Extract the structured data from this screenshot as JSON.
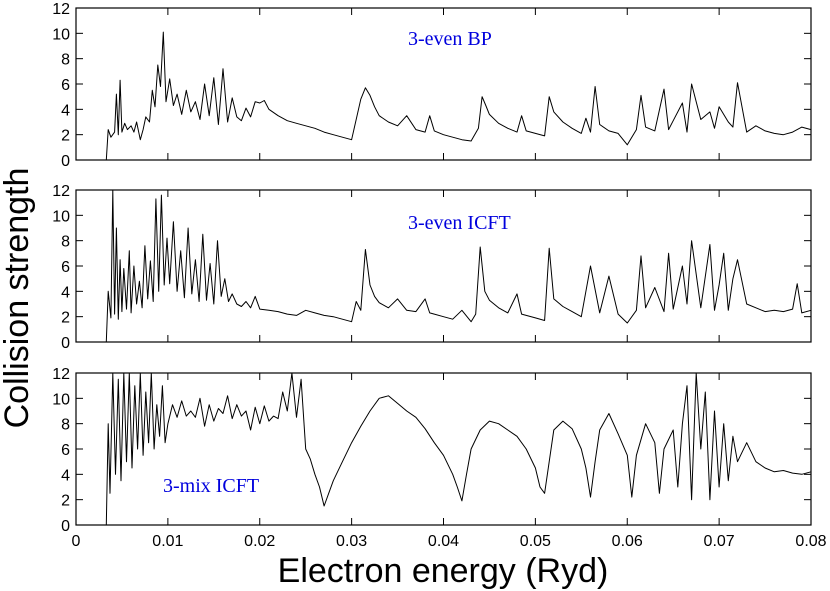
{
  "chart_data": [
    {
      "type": "line",
      "panel_label": "3-even BP",
      "ylim": [
        0,
        12
      ],
      "yticks": [
        0,
        2,
        4,
        6,
        8,
        10,
        12
      ],
      "xlim": [
        0,
        0.08
      ],
      "xticks": [
        0,
        0.01,
        0.02,
        0.03,
        0.04,
        0.05,
        0.06,
        0.07,
        0.08
      ],
      "series": [
        {
          "name": "3-even BP",
          "x": [
            0.0033,
            0.0035,
            0.0038,
            0.0042,
            0.0044,
            0.0046,
            0.0048,
            0.005,
            0.0053,
            0.0056,
            0.006,
            0.0063,
            0.0066,
            0.007,
            0.0073,
            0.0076,
            0.008,
            0.0083,
            0.0086,
            0.0089,
            0.0092,
            0.0095,
            0.0098,
            0.0102,
            0.0106,
            0.011,
            0.0115,
            0.012,
            0.0125,
            0.013,
            0.0135,
            0.014,
            0.0145,
            0.015,
            0.0155,
            0.016,
            0.0165,
            0.017,
            0.0175,
            0.018,
            0.0185,
            0.019,
            0.0195,
            0.02,
            0.0205,
            0.021,
            0.022,
            0.023,
            0.024,
            0.025,
            0.026,
            0.027,
            0.028,
            0.029,
            0.03,
            0.031,
            0.0315,
            0.032,
            0.0325,
            0.033,
            0.034,
            0.035,
            0.036,
            0.037,
            0.038,
            0.0385,
            0.039,
            0.04,
            0.041,
            0.042,
            0.043,
            0.0438,
            0.0442,
            0.0446,
            0.045,
            0.046,
            0.047,
            0.048,
            0.0485,
            0.049,
            0.05,
            0.051,
            0.0515,
            0.052,
            0.053,
            0.054,
            0.055,
            0.0555,
            0.056,
            0.0565,
            0.057,
            0.058,
            0.059,
            0.06,
            0.061,
            0.0615,
            0.062,
            0.063,
            0.064,
            0.0645,
            0.065,
            0.066,
            0.0665,
            0.067,
            0.068,
            0.069,
            0.0695,
            0.07,
            0.071,
            0.0715,
            0.072,
            0.073,
            0.074,
            0.075,
            0.076,
            0.077,
            0.078,
            0.079,
            0.08
          ],
          "y": [
            0,
            2.4,
            1.8,
            2.2,
            5.2,
            2.0,
            6.3,
            2.2,
            2.9,
            2.4,
            2.7,
            2.2,
            3.0,
            1.6,
            2.4,
            3.4,
            3.0,
            5.5,
            4.2,
            7.5,
            5.8,
            10.1,
            4.6,
            6.4,
            4.3,
            5.2,
            3.6,
            5.5,
            3.8,
            4.6,
            3.2,
            6.0,
            3.5,
            6.5,
            2.8,
            7.2,
            3.0,
            4.9,
            3.4,
            3.1,
            4.1,
            3.4,
            4.6,
            4.5,
            4.7,
            4.0,
            3.5,
            3.1,
            2.9,
            2.7,
            2.5,
            2.2,
            2.0,
            1.8,
            1.6,
            4.8,
            5.7,
            5.1,
            4.2,
            3.5,
            3.0,
            2.7,
            3.5,
            2.4,
            2.2,
            3.5,
            2.3,
            2.0,
            1.8,
            1.6,
            1.5,
            2.5,
            5.0,
            4.3,
            3.6,
            2.9,
            2.5,
            2.2,
            3.5,
            2.3,
            2.1,
            1.9,
            5.0,
            3.8,
            3.0,
            2.5,
            2.1,
            3.3,
            2.2,
            5.8,
            2.8,
            2.3,
            2.1,
            1.2,
            2.4,
            5.1,
            2.6,
            2.3,
            5.6,
            2.4,
            3.1,
            4.5,
            2.2,
            6.0,
            3.2,
            3.8,
            2.5,
            4.2,
            3.0,
            2.6,
            6.1,
            2.2,
            2.7,
            2.3,
            2.1,
            2.0,
            2.2,
            2.6,
            2.4
          ]
        }
      ]
    },
    {
      "type": "line",
      "panel_label": "3-even ICFT",
      "ylim": [
        0,
        12
      ],
      "yticks": [
        0,
        2,
        4,
        6,
        8,
        10,
        12
      ],
      "xlim": [
        0,
        0.08
      ],
      "xticks": [
        0,
        0.01,
        0.02,
        0.03,
        0.04,
        0.05,
        0.06,
        0.07,
        0.08
      ],
      "series": [
        {
          "name": "3-even ICFT",
          "x": [
            0.0033,
            0.0035,
            0.0038,
            0.004,
            0.0042,
            0.0044,
            0.0046,
            0.0048,
            0.005,
            0.0052,
            0.0055,
            0.0058,
            0.006,
            0.0063,
            0.0066,
            0.0069,
            0.0072,
            0.0075,
            0.0078,
            0.0081,
            0.0084,
            0.0087,
            0.009,
            0.0093,
            0.0096,
            0.0099,
            0.0102,
            0.0106,
            0.011,
            0.0114,
            0.0118,
            0.0122,
            0.0126,
            0.013,
            0.0134,
            0.0138,
            0.0142,
            0.0146,
            0.015,
            0.0154,
            0.0158,
            0.0162,
            0.0166,
            0.017,
            0.0175,
            0.018,
            0.0185,
            0.019,
            0.0195,
            0.02,
            0.021,
            0.022,
            0.023,
            0.024,
            0.025,
            0.026,
            0.027,
            0.028,
            0.029,
            0.03,
            0.0305,
            0.031,
            0.0315,
            0.032,
            0.0325,
            0.033,
            0.034,
            0.035,
            0.036,
            0.037,
            0.038,
            0.0385,
            0.039,
            0.04,
            0.041,
            0.042,
            0.043,
            0.0435,
            0.044,
            0.0445,
            0.045,
            0.046,
            0.047,
            0.048,
            0.0485,
            0.049,
            0.05,
            0.051,
            0.0515,
            0.052,
            0.053,
            0.054,
            0.055,
            0.0555,
            0.056,
            0.057,
            0.058,
            0.059,
            0.06,
            0.061,
            0.0615,
            0.062,
            0.063,
            0.064,
            0.0645,
            0.065,
            0.066,
            0.0665,
            0.067,
            0.068,
            0.069,
            0.0695,
            0.07,
            0.0705,
            0.071,
            0.0715,
            0.072,
            0.073,
            0.074,
            0.075,
            0.076,
            0.077,
            0.078,
            0.0785,
            0.079,
            0.08
          ],
          "y": [
            0,
            4.0,
            1.9,
            12.0,
            2.2,
            9.0,
            1.8,
            6.5,
            2.4,
            5.8,
            2.6,
            7.2,
            2.3,
            6.0,
            3.0,
            4.8,
            2.7,
            7.6,
            3.4,
            6.4,
            3.2,
            11.3,
            4.0,
            11.6,
            4.5,
            8.2,
            4.6,
            9.5,
            4.0,
            7.2,
            3.5,
            9.0,
            3.8,
            6.5,
            3.2,
            8.5,
            3.3,
            6.2,
            3.0,
            8.0,
            3.6,
            5.0,
            3.2,
            3.8,
            3.0,
            2.8,
            3.2,
            2.7,
            3.6,
            2.6,
            2.5,
            2.4,
            2.2,
            2.1,
            2.5,
            2.3,
            2.1,
            2.0,
            1.8,
            1.6,
            3.2,
            2.5,
            7.3,
            4.5,
            3.6,
            3.1,
            2.7,
            3.4,
            2.5,
            2.4,
            3.4,
            2.3,
            2.2,
            2.0,
            1.8,
            2.5,
            1.6,
            2.2,
            7.5,
            4.0,
            3.3,
            2.7,
            2.3,
            3.8,
            2.2,
            2.1,
            1.9,
            1.7,
            7.4,
            3.4,
            2.8,
            2.4,
            2.0,
            4.0,
            6.0,
            2.3,
            5.2,
            2.2,
            1.5,
            2.5,
            6.8,
            2.7,
            4.3,
            2.4,
            7.0,
            2.6,
            6.0,
            3.0,
            8.0,
            2.7,
            7.7,
            2.5,
            4.5,
            7.0,
            2.5,
            5.0,
            6.5,
            3.0,
            2.7,
            2.4,
            2.5,
            2.4,
            2.6,
            4.6,
            2.3,
            2.5
          ]
        }
      ]
    },
    {
      "type": "line",
      "panel_label": "3-mix ICFT",
      "ylim": [
        0,
        12
      ],
      "yticks": [
        0,
        2,
        4,
        6,
        8,
        10,
        12
      ],
      "xlim": [
        0,
        0.08
      ],
      "xticks": [
        0,
        0.01,
        0.02,
        0.03,
        0.04,
        0.05,
        0.06,
        0.07,
        0.08
      ],
      "xticklabels": [
        "0",
        "0.01",
        "0.02",
        "0.03",
        "0.04",
        "0.05",
        "0.06",
        "0.07",
        "0.08"
      ],
      "series": [
        {
          "name": "3-mix ICFT",
          "x": [
            0.0033,
            0.0035,
            0.0037,
            0.004,
            0.0043,
            0.0046,
            0.0049,
            0.0052,
            0.0055,
            0.0058,
            0.0061,
            0.0064,
            0.0067,
            0.007,
            0.0073,
            0.0076,
            0.0079,
            0.0082,
            0.0085,
            0.0088,
            0.0091,
            0.0094,
            0.0097,
            0.01,
            0.0105,
            0.011,
            0.0115,
            0.012,
            0.0125,
            0.013,
            0.0135,
            0.014,
            0.0145,
            0.015,
            0.0155,
            0.016,
            0.0165,
            0.017,
            0.0175,
            0.018,
            0.0185,
            0.019,
            0.0195,
            0.02,
            0.0205,
            0.021,
            0.0215,
            0.022,
            0.0225,
            0.023,
            0.0235,
            0.024,
            0.0245,
            0.025,
            0.0255,
            0.026,
            0.0265,
            0.027,
            0.0275,
            0.028,
            0.029,
            0.03,
            0.031,
            0.032,
            0.033,
            0.034,
            0.035,
            0.036,
            0.037,
            0.038,
            0.039,
            0.04,
            0.041,
            0.0415,
            0.042,
            0.0425,
            0.043,
            0.044,
            0.045,
            0.046,
            0.047,
            0.048,
            0.049,
            0.05,
            0.0505,
            0.051,
            0.0515,
            0.052,
            0.053,
            0.054,
            0.055,
            0.0555,
            0.056,
            0.0565,
            0.057,
            0.058,
            0.059,
            0.06,
            0.0605,
            0.061,
            0.062,
            0.063,
            0.0635,
            0.064,
            0.065,
            0.0655,
            0.066,
            0.0665,
            0.067,
            0.0675,
            0.068,
            0.0685,
            0.069,
            0.0695,
            0.07,
            0.0705,
            0.071,
            0.0715,
            0.072,
            0.073,
            0.074,
            0.075,
            0.076,
            0.077,
            0.078,
            0.079,
            0.08
          ],
          "y": [
            0,
            8.0,
            2.5,
            12.0,
            4.0,
            11.5,
            3.5,
            12.0,
            5.0,
            12.0,
            4.5,
            11.0,
            6.0,
            12.0,
            5.5,
            10.5,
            6.5,
            12.0,
            6.0,
            9.5,
            7.0,
            11.0,
            6.5,
            8.0,
            9.5,
            8.5,
            9.8,
            8.6,
            9.0,
            8.5,
            10.0,
            7.8,
            9.5,
            8.2,
            9.2,
            8.8,
            10.2,
            8.4,
            9.5,
            8.6,
            9.0,
            7.5,
            9.3,
            8.0,
            9.4,
            8.2,
            8.6,
            8.4,
            10.5,
            9.0,
            12.0,
            8.5,
            11.5,
            6.0,
            5.2,
            4.0,
            3.0,
            1.5,
            2.5,
            3.5,
            5.0,
            6.5,
            7.8,
            9.0,
            10.0,
            10.2,
            9.6,
            9.0,
            8.5,
            7.6,
            6.5,
            5.5,
            4.0,
            3.0,
            1.9,
            4.0,
            6.0,
            7.5,
            8.2,
            8.0,
            7.5,
            7.0,
            6.0,
            4.5,
            3.0,
            2.5,
            5.0,
            7.5,
            8.2,
            7.6,
            6.0,
            4.5,
            2.2,
            5.0,
            7.5,
            8.8,
            7.2,
            5.5,
            2.2,
            5.5,
            8.0,
            6.5,
            2.5,
            6.0,
            7.5,
            3.0,
            8.0,
            11.0,
            2.0,
            12.0,
            6.0,
            10.5,
            2.0,
            9.0,
            3.0,
            8.0,
            3.5,
            7.0,
            5.0,
            6.5,
            5.0,
            4.5,
            4.2,
            4.3,
            4.1,
            4.0,
            4.2
          ]
        }
      ]
    }
  ],
  "ylabel": "Collision strength",
  "xlabel": "Electron energy (Ryd)"
}
